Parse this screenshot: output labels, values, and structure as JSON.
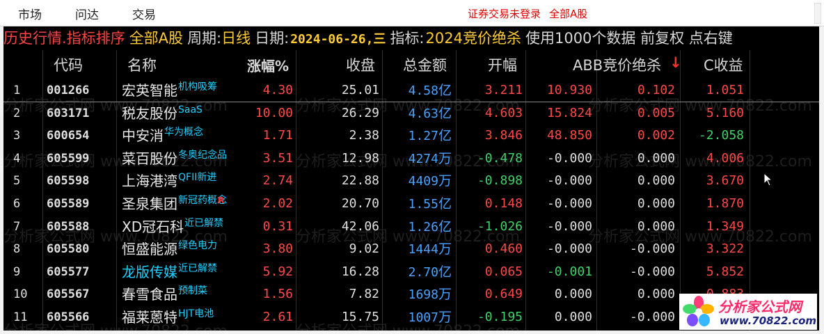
{
  "menu": {
    "items": [
      "市场",
      "问达",
      "交易"
    ],
    "status": [
      "证券交易未登录",
      "全部A股"
    ]
  },
  "infobar": {
    "mode": "历史行情.指标排序",
    "board": "全部A股",
    "period_label": "周期:",
    "period_value": "日线",
    "date_label": "日期:",
    "date_value": "2024-06-26,三",
    "indicator_label": "指标:",
    "indicator_value": "2024竞价绝杀",
    "usage": "使用1000个数据 前复权 点右键"
  },
  "headers": {
    "code": "代码",
    "name": "名称",
    "change": "涨幅%",
    "close": "收盘",
    "amount": "总金额",
    "open": "开幅",
    "abb": "ABB竞价绝杀",
    "sort_indicator": "↓",
    "c": "C收益"
  },
  "colors": {
    "up": "#ff4848",
    "down": "#3fd26a",
    "amount": "#4aa3ff",
    "tag": "#1fd1ff",
    "background": "#000000"
  },
  "rows": [
    {
      "idx": "1",
      "code": "001266",
      "name": "宏英智能",
      "tag": "机构吸筹",
      "name_color": "white",
      "change": "4.30",
      "close": "25.01",
      "amount": "4.58",
      "amount_unit": "亿",
      "open": "3.211",
      "abb": "10.930",
      "jj": "0.102",
      "c": "1.051"
    },
    {
      "idx": "2",
      "code": "603171",
      "name": "税友股份",
      "tag": "SaaS",
      "name_color": "white",
      "change": "10.00",
      "close": "26.29",
      "amount": "4.63",
      "amount_unit": "亿",
      "open": "4.603",
      "abb": "15.824",
      "jj": "0.005",
      "c": "5.160"
    },
    {
      "idx": "3",
      "code": "600654",
      "name": "中安消",
      "tag": "华为概念",
      "name_color": "white",
      "change": "1.71",
      "close": "2.38",
      "amount": "1.27",
      "amount_unit": "亿",
      "open": "3.846",
      "abb": "48.850",
      "jj": "0.002",
      "c": "-2.058"
    },
    {
      "idx": "4",
      "code": "605599",
      "name": "菜百股份",
      "tag": "冬奥纪念品",
      "name_color": "white",
      "change": "3.51",
      "close": "12.98",
      "amount": "4274",
      "amount_unit": "万",
      "open": "-0.478",
      "abb": "-0.000",
      "jj": "0.000",
      "c": "4.006"
    },
    {
      "idx": "5",
      "code": "605598",
      "name": "上海港湾",
      "tag": "QFII新进",
      "name_color": "white",
      "change": "2.74",
      "close": "22.88",
      "amount": "4409",
      "amount_unit": "万",
      "open": "-0.898",
      "abb": "-0.000",
      "jj": "0.000",
      "c": "3.670"
    },
    {
      "idx": "6",
      "code": "605589",
      "name": "圣泉集团",
      "tag": "新冠药概念",
      "badge": "R",
      "name_color": "white",
      "change": "2.02",
      "close": "20.70",
      "amount": "1.55",
      "amount_unit": "亿",
      "open": "0.148",
      "abb": "-0.000",
      "jj": "0.000",
      "c": "1.870"
    },
    {
      "idx": "7",
      "code": "605588",
      "name": "XD冠石科",
      "tag": "近已解禁",
      "name_color": "white",
      "change": "0.31",
      "close": "42.06",
      "amount": "1.26",
      "amount_unit": "亿",
      "open": "-1.026",
      "abb": "-0.000",
      "jj": "0.000",
      "c": "1.349"
    },
    {
      "idx": "8",
      "code": "605580",
      "name": "恒盛能源",
      "tag": "绿色电力",
      "name_color": "white",
      "change": "3.80",
      "close": "9.02",
      "amount": "1444",
      "amount_unit": "万",
      "open": "0.460",
      "abb": "-0.000",
      "jj": "-0.000",
      "c": "3.322"
    },
    {
      "idx": "9",
      "code": "605577",
      "name": "龙版传媒",
      "tag": "近已解禁",
      "name_color": "cyan",
      "change": "5.92",
      "close": "16.28",
      "amount": "2.70",
      "amount_unit": "亿",
      "open": "0.065",
      "abb": "-0.001",
      "jj": "-0.000",
      "c": "5.852"
    },
    {
      "idx": "10",
      "code": "605567",
      "name": "春雪食品",
      "tag": "预制菜",
      "name_color": "white",
      "change": "1.56",
      "close": "7.82",
      "amount": "1698",
      "amount_unit": "万",
      "open": "0.649",
      "abb": "0.000",
      "jj": "0.000",
      "c": "0.883"
    },
    {
      "idx": "11",
      "code": "605566",
      "name": "福莱蒽特",
      "tag": "HJT电池",
      "name_color": "white",
      "change": "2.61",
      "close": "15.75",
      "amount": "1007",
      "amount_unit": "万",
      "open": "-0.195",
      "abb": "0.000",
      "jj": "-0.000",
      "c": "2.761"
    }
  ],
  "watermark": "分析家公式网 www.70822.com",
  "logo": {
    "title": "分析家公式网",
    "url": "www.70822.com"
  }
}
